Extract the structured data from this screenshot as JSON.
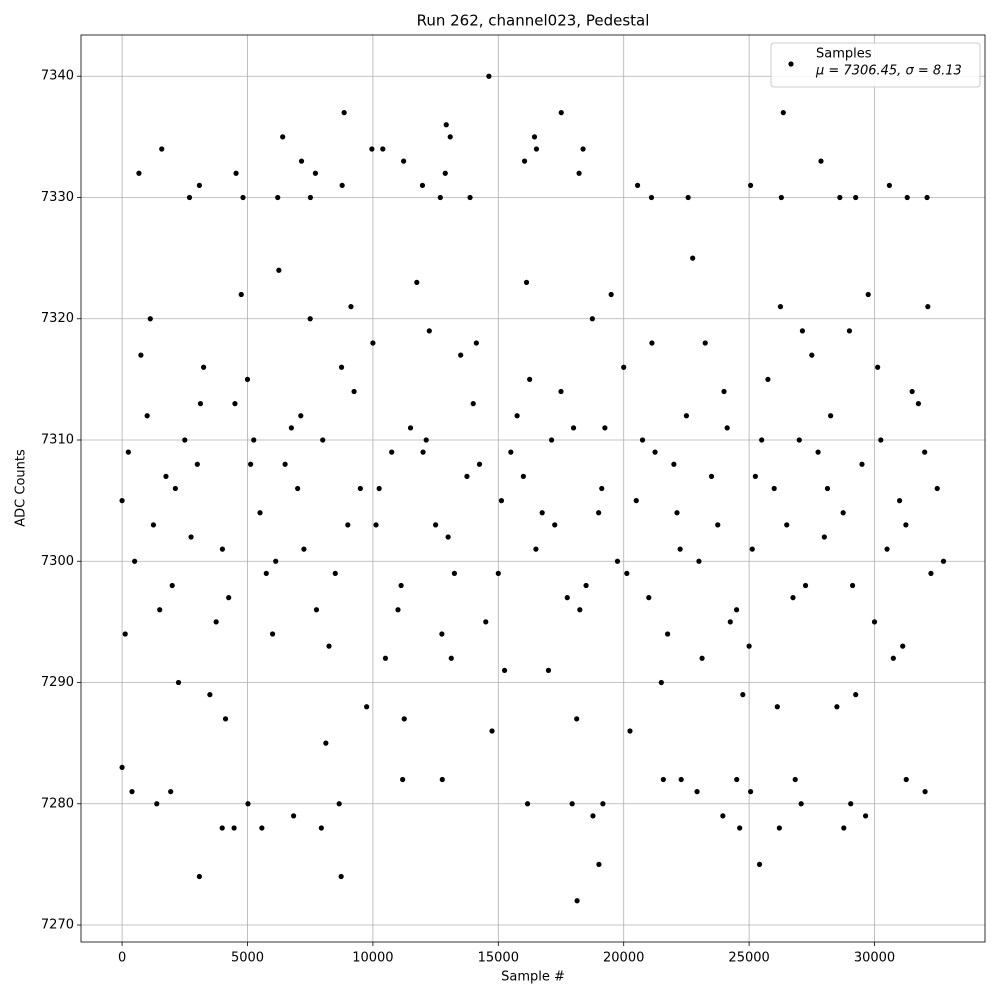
{
  "chart_data": {
    "type": "scatter",
    "title": "Run 262, channel023, Pedestal",
    "xlabel": "Sample #",
    "ylabel": "ADC Counts",
    "xlim": [
      -1638,
      34405
    ],
    "ylim": [
      7268.6,
      7343.4
    ],
    "xticks": [
      0,
      5000,
      10000,
      15000,
      20000,
      25000,
      30000
    ],
    "yticks": [
      7270,
      7280,
      7290,
      7300,
      7310,
      7320,
      7330,
      7340
    ],
    "grid": true,
    "legend_position": "upper right",
    "legend_stats": "μ = 7306.45, σ = 8.13",
    "series": [
      {
        "name": "Samples",
        "color": "#000000",
        "x": [
          14625,
          8854,
          17510,
          26364,
          12925,
          6403,
          13083,
          16443,
          1581,
          9960,
          10395,
          16521,
          18379,
          7154,
          11225,
          16047,
          27866,
          672,
          4545,
          7708,
          12885,
          18221,
          3083,
          8775,
          11976,
          25059,
          20553,
          30593,
          2688,
          4822,
          6206,
          7510,
          12688,
          13874,
          21107,
          22569,
          26285,
          28617,
          29249,
          31304,
          32095,
          0,
          395,
          1383,
          5020,
          8656,
          16166,
          17945,
          19170,
          27075,
          29051,
          3992,
          4466,
          5573,
          7945,
          24625,
          26206,
          28775,
          6838,
          18775,
          23953,
          29644,
          3083,
          8735,
          19012,
          25415,
          18142,
          1937,
          22925,
          25059,
          32016,
          11186,
          12767,
          21581,
          22292,
          24506,
          26838,
          31265,
          0,
          1000,
          2000,
          3000,
          4000,
          5000,
          6000,
          7000,
          8000,
          9000,
          10000,
          11000,
          12000,
          13000,
          14000,
          15000,
          16000,
          17000,
          18000,
          19000,
          20000,
          21000,
          22000,
          23000,
          24000,
          25000,
          26000,
          27000,
          28000,
          29000,
          30000,
          31000,
          32000,
          500,
          1500,
          2500,
          3500,
          4500,
          5500,
          6500,
          7500,
          8500,
          9500,
          10500,
          11500,
          12500,
          13500,
          14500,
          15500,
          16500,
          17500,
          18500,
          19500,
          20500,
          21500,
          22500,
          23500,
          24500,
          25500,
          26500,
          27500,
          28500,
          29500,
          30500,
          31500,
          32500,
          250,
          1250,
          2250,
          3250,
          4250,
          5250,
          6250,
          7250,
          8250,
          9250,
          10250,
          11250,
          12250,
          13250,
          14250,
          15250,
          16250,
          17250,
          18250,
          19250,
          20250,
          21250,
          22250,
          23250,
          24250,
          25250,
          26250,
          27250,
          28250,
          29250,
          30250,
          31250,
          32250,
          750,
          1750,
          2750,
          3750,
          4750,
          5750,
          6750,
          7750,
          8750,
          9750,
          10750,
          11750,
          12750,
          13750,
          14750,
          15750,
          16750,
          17750,
          18750,
          19750,
          20750,
          21750,
          22750,
          23750,
          24750,
          25750,
          26750,
          27750,
          28750,
          29750,
          30750,
          31750,
          32750,
          125,
          1125,
          2125,
          3125,
          4125,
          5125,
          6125,
          7125,
          8125,
          9125,
          10125,
          11125,
          12125,
          13125,
          14125,
          15125,
          16125,
          17125,
          18125,
          19125,
          20125,
          21125,
          22125,
          23125,
          24125,
          25125,
          26125,
          27125,
          28125,
          29125,
          30125,
          31125,
          32125
        ],
        "values": [
          7340,
          7337,
          7337,
          7337,
          7336,
          7335,
          7335,
          7335,
          7334,
          7334,
          7334,
          7334,
          7334,
          7333,
          7333,
          7333,
          7333,
          7332,
          7332,
          7332,
          7332,
          7332,
          7331,
          7331,
          7331,
          7331,
          7331,
          7331,
          7330,
          7330,
          7330,
          7330,
          7330,
          7330,
          7330,
          7330,
          7330,
          7330,
          7330,
          7330,
          7330,
          7283,
          7281,
          7280,
          7280,
          7280,
          7280,
          7280,
          7280,
          7280,
          7280,
          7278,
          7278,
          7278,
          7278,
          7278,
          7278,
          7278,
          7279,
          7279,
          7279,
          7279,
          7274,
          7274,
          7275,
          7275,
          7272,
          7281,
          7281,
          7281,
          7281,
          7282,
          7282,
          7282,
          7282,
          7282,
          7282,
          7282,
          7305,
          7312,
          7298,
          7308,
          7301,
          7315,
          7294,
          7306,
          7310,
          7303,
          7318,
          7296,
          7309,
          7302,
          7313,
          7299,
          7307,
          7291,
          7311,
          7304,
          7316,
          7297,
          7308,
          7300,
          7314,
          7293,
          7306,
          7310,
          7302,
          7319,
          7295,
          7305,
          7309,
          7300,
          7296,
          7310,
          7289,
          7313,
          7304,
          7308,
          7320,
          7299,
          7306,
          7292,
          7311,
          7303,
          7317,
          7295,
          7309,
          7301,
          7314,
          7298,
          7322,
          7305,
          7290,
          7312,
          7307,
          7296,
          7310,
          7303,
          7317,
          7288,
          7308,
          7301,
          7314,
          7306,
          7309,
          7303,
          7290,
          7316,
          7297,
          7310,
          7324,
          7301,
          7293,
          7314,
          7306,
          7287,
          7319,
          7299,
          7308,
          7291,
          7315,
          7303,
          7296,
          7311,
          7286,
          7309,
          7301,
          7318,
          7295,
          7307,
          7321,
          7298,
          7312,
          7289,
          7310,
          7303,
          7299,
          7317,
          7307,
          7302,
          7295,
          7322,
          7299,
          7311,
          7296,
          7316,
          7288,
          7309,
          7323,
          7294,
          7307,
          7286,
          7312,
          7304,
          7297,
          7320,
          7300,
          7310,
          7294,
          7325,
          7303,
          7289,
          7315,
          7297,
          7309,
          7304,
          7322,
          7292,
          7313,
          7300,
          7294,
          7320,
          7306,
          7313,
          7287,
          7308,
          7300,
          7312,
          7285,
          7321,
          7303,
          7298,
          7310,
          7292,
          7318,
          7305,
          7323,
          7310,
          7287,
          7306,
          7299,
          7318,
          7304,
          7292,
          7311,
          7301,
          7288,
          7319,
          7306,
          7298,
          7316,
          7293,
          7321
        ]
      }
    ]
  }
}
